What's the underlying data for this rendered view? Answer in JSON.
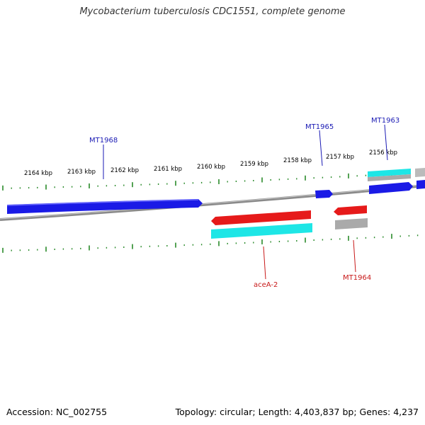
{
  "title": "Mycobacterium tuberculosis CDC1551, complete genome",
  "accession_text": "Accession: NC_002755",
  "summary_text": "Topology: circular; Length: 4,403,837 bp; Genes: 4,237",
  "colors": {
    "forward_gene": "#1a1ae6",
    "reverse_gene": "#e61a1a",
    "cds": "#1ee6e6",
    "other_feature": "#aaaaaa",
    "backbone": "#888888",
    "ticks": "#2a8a2a",
    "forward_label": "#1a1ab4",
    "reverse_label": "#c81a1a"
  },
  "kbp_labels": [
    "2164 kbp",
    "2163 kbp",
    "2162 kbp",
    "2161 kbp",
    "2160 kbp",
    "2159 kbp",
    "2158 kbp",
    "2157 kbp",
    "2156 kbp"
  ],
  "gene_labels": {
    "forward": [
      "MT1968",
      "MT1965",
      "MT1963"
    ],
    "reverse": [
      "aceA-2",
      "MT1964"
    ]
  }
}
